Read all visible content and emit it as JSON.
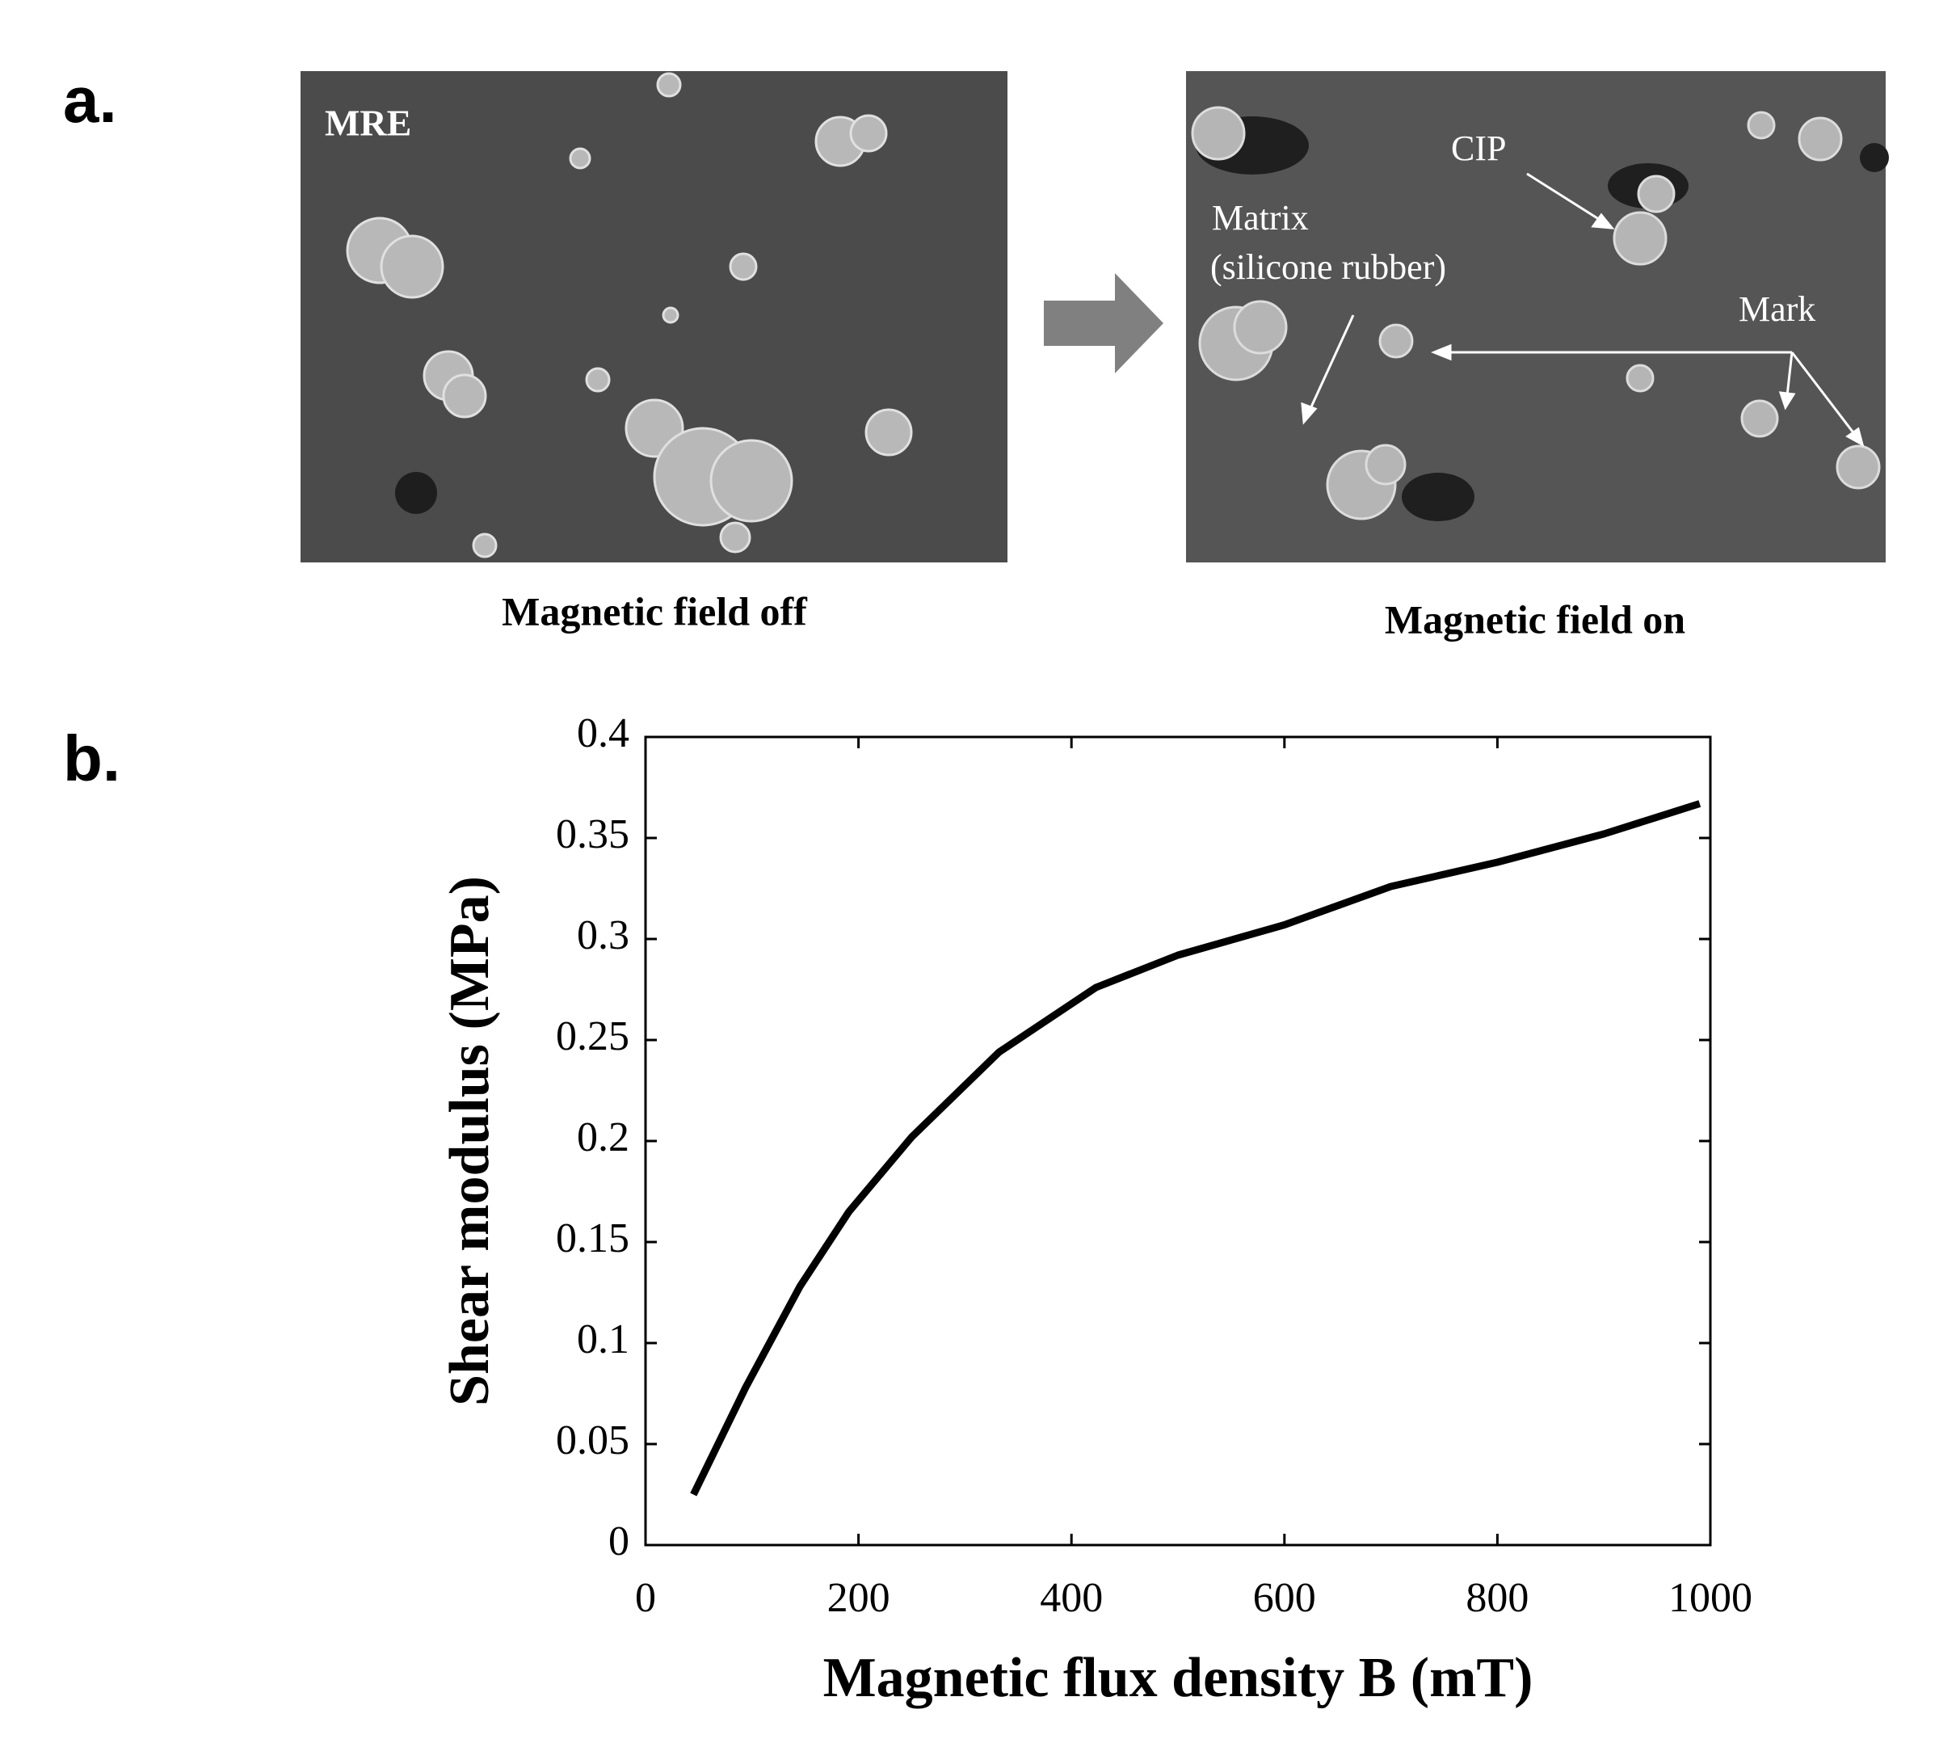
{
  "panel_a": {
    "label": "a.",
    "left_image": {
      "tag": "MRE",
      "caption": "Magnetic field off"
    },
    "right_image": {
      "annotations": [
        "CIP",
        "Matrix",
        "(silicone rubber)",
        "Mark"
      ],
      "caption": "Magnetic field on"
    }
  },
  "panel_b": {
    "label": "b."
  },
  "chart_data": {
    "type": "line",
    "x_label": "Magnetic flux density B (mT)",
    "y_label": "Shear modulus (MPa)",
    "x": [
      45,
      94,
      145,
      191,
      250,
      332,
      423,
      500,
      600,
      700,
      800,
      900,
      990
    ],
    "values": [
      0.025,
      0.078,
      0.128,
      0.165,
      0.202,
      0.244,
      0.276,
      0.292,
      0.307,
      0.326,
      0.338,
      0.352,
      0.367
    ],
    "color": "#000000",
    "xlim": [
      0,
      1000
    ],
    "xticks": [
      0,
      200,
      400,
      600,
      800,
      1000
    ],
    "ylim": [
      0,
      0.4
    ],
    "yticks": [
      0,
      0.05,
      0.1,
      0.15,
      0.2,
      0.25,
      0.3,
      0.35,
      0.4
    ]
  }
}
